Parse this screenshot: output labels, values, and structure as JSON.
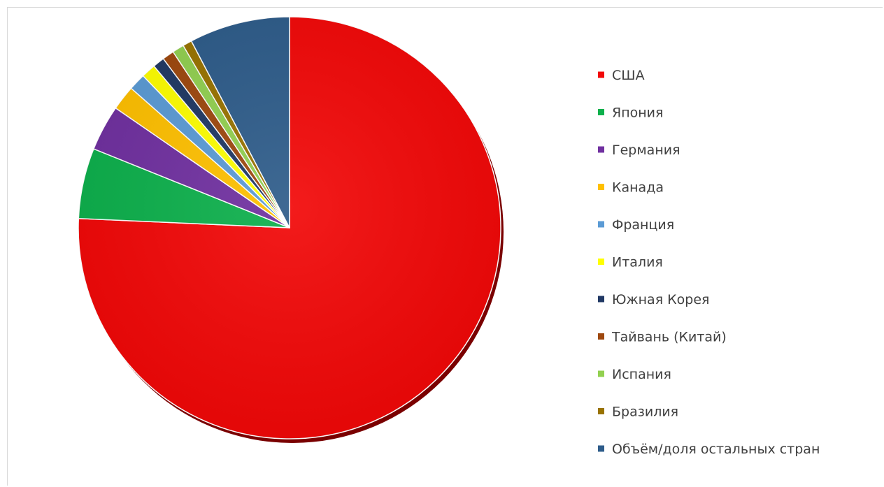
{
  "chart_data": {
    "type": "pie",
    "start": "top",
    "direction": "clockwise",
    "legend_position": "right",
    "labels": [
      "США",
      "Япония",
      "Германия",
      "Канада",
      "Франция",
      "Италия",
      "Южная Корея",
      "Тайвань (Китай)",
      "Испания",
      "Бразилия",
      "Объём/доля остальных стран"
    ],
    "values": [
      75.7,
      5.4,
      3.5,
      1.9,
      1.3,
      1.1,
      0.9,
      0.9,
      0.9,
      0.7,
      7.7
    ],
    "colors": [
      "#f20808",
      "#0db04c",
      "#7030a0",
      "#ffc000",
      "#5b9bd5",
      "#ffff00",
      "#203864",
      "#9e480e",
      "#92d050",
      "#997300",
      "#2e5c8a"
    ]
  }
}
